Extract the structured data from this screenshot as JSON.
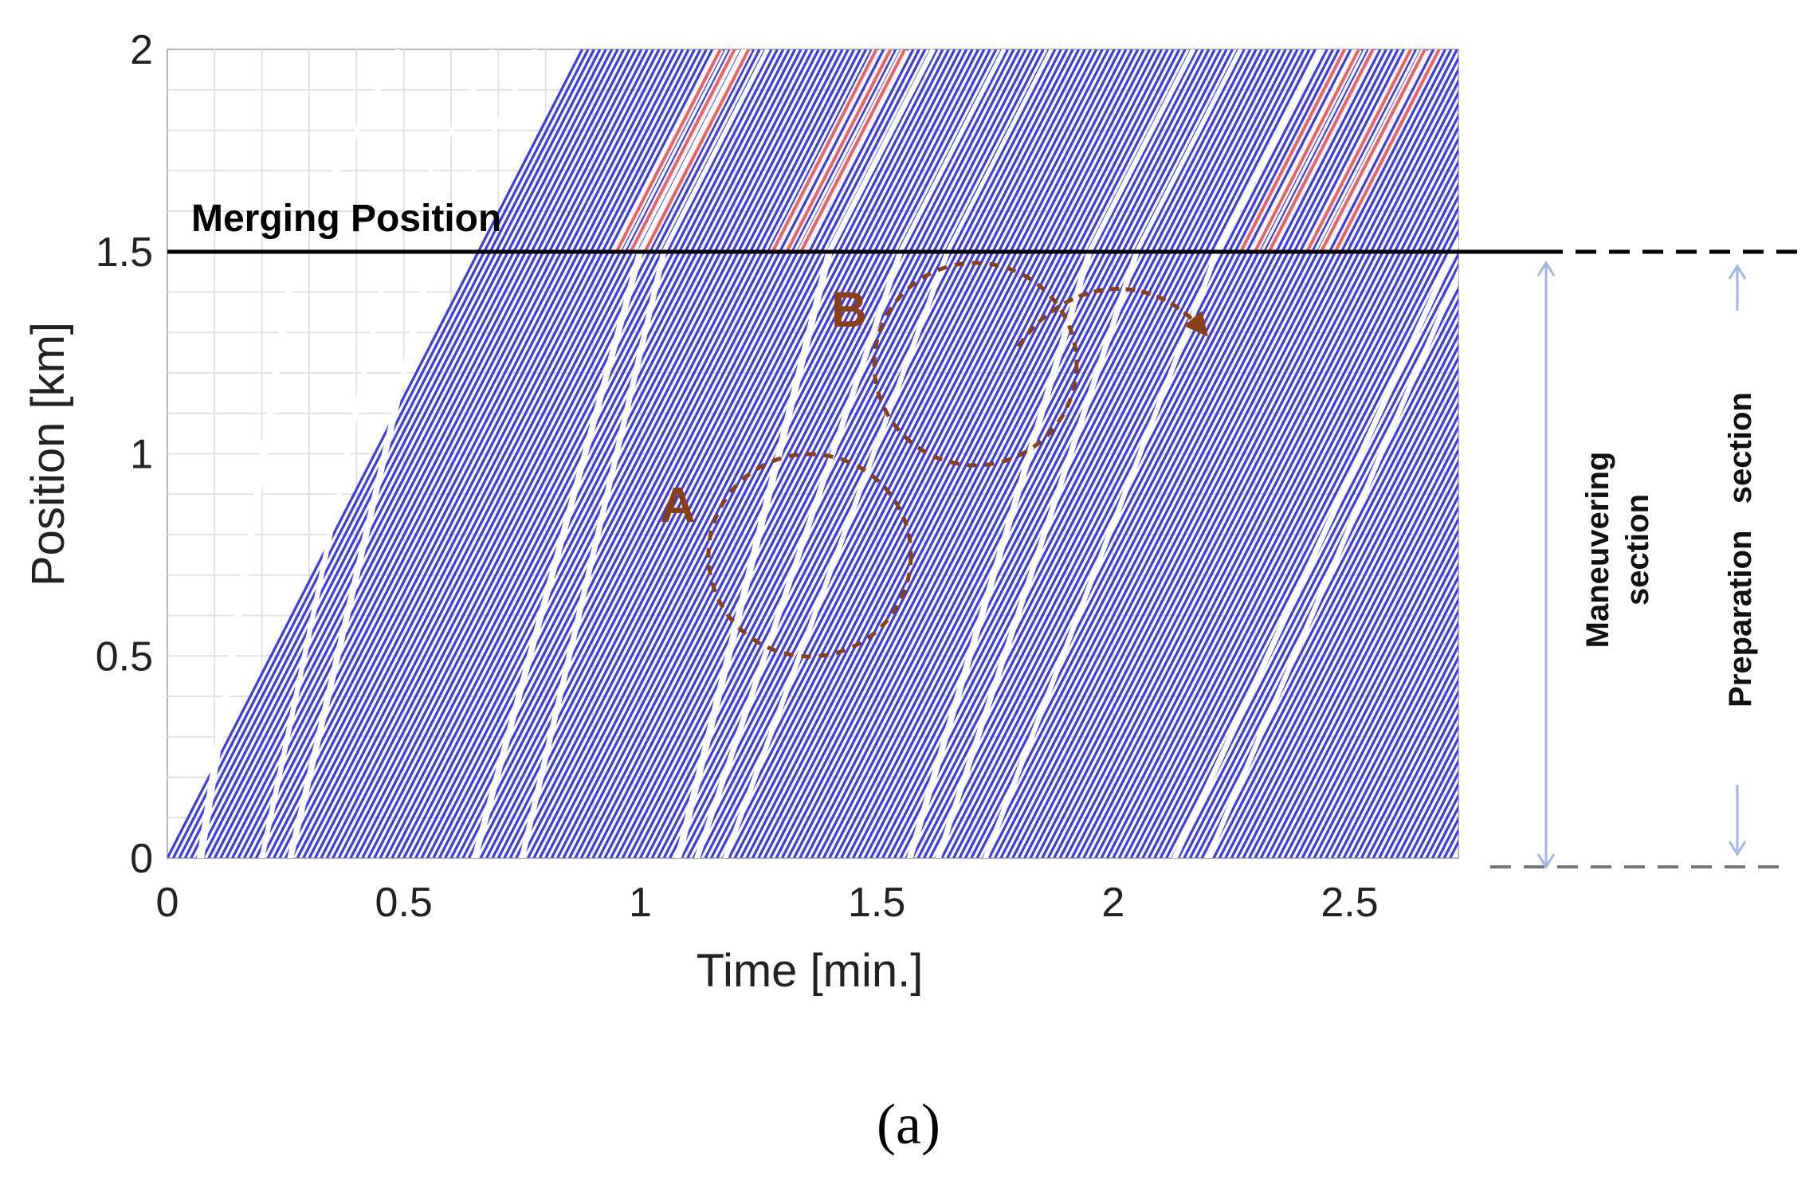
{
  "chart_data": {
    "type": "line",
    "subtype": "vehicle trajectory time-space diagram",
    "title": "",
    "xlabel": "Time [min.]",
    "ylabel": "Position [km]",
    "xlim": [
      0,
      2.73
    ],
    "ylim": [
      0,
      2
    ],
    "xticks": [
      "0",
      "0.5",
      "1",
      "1.5",
      "2",
      "2.5"
    ],
    "yticks": [
      "0",
      "0.5",
      "1",
      "1.5",
      "2"
    ],
    "grid": true,
    "series": [
      {
        "name": "vehicle trajectories",
        "color": "#3a3af0",
        "start_times_min": [
          0.0,
          2.72
        ],
        "spacing_min": 0.0125,
        "free_flow_speed_km_per_min": 2.28
      },
      {
        "name": "merging vehicles",
        "color": "#f06060",
        "start_times_min": [
          0.95,
          1.28,
          2.27,
          2.41
        ]
      }
    ],
    "gaps": [
      {
        "t0": 0.07,
        "t1": 0.27,
        "width": 0.028
      },
      {
        "t0": 0.2,
        "t1": 0.47,
        "width": 0.02
      },
      {
        "t0": 0.26,
        "t1": 0.56,
        "width": 0.024
      },
      {
        "t0": 0.65,
        "t1": 1.0,
        "width": 0.024
      },
      {
        "t0": 0.75,
        "t1": 1.05,
        "width": 0.022
      },
      {
        "t0": 1.08,
        "t1": 1.4,
        "width": 0.026
      },
      {
        "t0": 1.12,
        "t1": 1.55,
        "width": 0.022
      },
      {
        "t0": 1.18,
        "t1": 1.65,
        "width": 0.02
      },
      {
        "t0": 1.57,
        "t1": 1.95,
        "width": 0.024
      },
      {
        "t0": 1.63,
        "t1": 2.05,
        "width": 0.022
      },
      {
        "t0": 1.73,
        "t1": 2.22,
        "width": 0.02
      },
      {
        "t0": 2.13,
        "t1": 2.72,
        "width": 0.022
      },
      {
        "t0": 2.2,
        "t1": 2.75,
        "width": 0.02
      }
    ],
    "merging_line": {
      "y": 1.5,
      "label": "Merging Position"
    },
    "annotations": [
      {
        "label": "A",
        "center": [
          1.35,
          0.75
        ],
        "radius_km": 0.25
      },
      {
        "label": "B",
        "center": [
          1.7,
          1.22
        ],
        "radius_km": 0.25
      }
    ],
    "sections": {
      "maneuvering": "Maneuvering\nsection",
      "preparation": "Preparation   section",
      "range_km": [
        0,
        1.5
      ]
    }
  },
  "colors": {
    "trajectory": "#3a3af0",
    "merging": "#f06060",
    "annotation": "#8b3f14",
    "grid": "#e2e2e2",
    "bracket": "#9fb4e8"
  },
  "caption": "(a)"
}
